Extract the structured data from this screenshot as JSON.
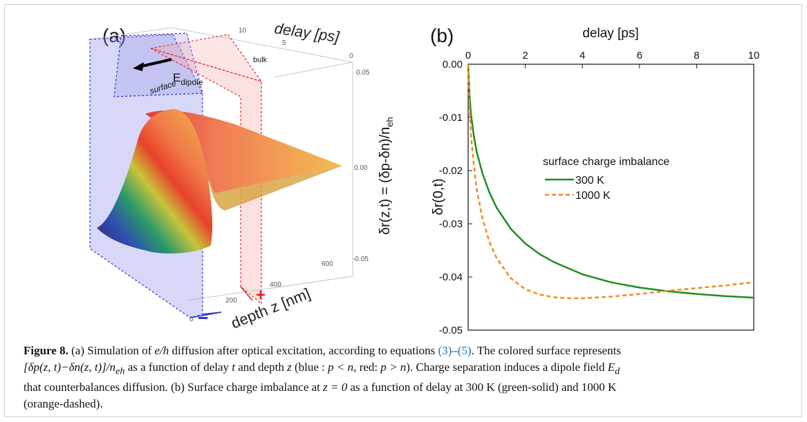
{
  "panel_a": {
    "label": "(a)",
    "delay_axis_label": "delay [ps]",
    "delay_ticks": [
      "10",
      "5",
      "0"
    ],
    "bulk_label": "bulk",
    "surface_label": "surface",
    "dipole_label_main": "E",
    "dipole_label_sub": "dipole",
    "z_axis_label_main": "δr(z,t) = (δp-δn)/n",
    "z_axis_label_sub": "eh",
    "z_ticks": [
      "0.05",
      "0.00",
      "-0.05"
    ],
    "depth_axis_label": "depth z [nm]",
    "depth_ticks": [
      "0",
      "200",
      "400",
      "600"
    ],
    "minus_sign": "−",
    "plus_sign": "+",
    "colors": {
      "blue_region": "#6a6ae6",
      "red_region": "#f28b8b",
      "blue_line": "#2a2ad8",
      "red_line": "#e02020"
    }
  },
  "panel_b": {
    "label": "(b)",
    "legend_title": "surface charge imbalance",
    "legend_300": "300 K",
    "legend_1000": "1000 K"
  },
  "chart_data": {
    "type": "line",
    "title": "",
    "xlabel": "delay [ps]",
    "ylabel": "δr(0,t)",
    "xlim": [
      0,
      10
    ],
    "ylim": [
      -0.05,
      0.0
    ],
    "xticks": [
      "0",
      "2",
      "4",
      "6",
      "8",
      "10"
    ],
    "yticks": [
      "0.00",
      "-0.01",
      "-0.02",
      "-0.03",
      "-0.04",
      "-0.05"
    ],
    "x_axis_position": "top",
    "legend_position": "right",
    "grid": false,
    "series": [
      {
        "name": "300 K",
        "color": "#1e8c1e",
        "style": "solid",
        "x": [
          0,
          0.05,
          0.1,
          0.2,
          0.3,
          0.5,
          0.75,
          1,
          1.5,
          2,
          2.5,
          3,
          4,
          5,
          6,
          7,
          8,
          9,
          10
        ],
        "y": [
          0.0,
          -0.006,
          -0.0095,
          -0.0135,
          -0.0165,
          -0.0205,
          -0.0242,
          -0.027,
          -0.031,
          -0.0337,
          -0.0357,
          -0.0372,
          -0.0395,
          -0.041,
          -0.042,
          -0.0427,
          -0.0432,
          -0.0436,
          -0.0439
        ]
      },
      {
        "name": "1000 K",
        "color": "#f08c1e",
        "style": "dashed",
        "x": [
          0,
          0.05,
          0.1,
          0.2,
          0.3,
          0.5,
          0.75,
          1,
          1.5,
          2,
          2.5,
          3,
          3.5,
          4,
          5,
          6,
          7,
          8,
          9,
          10
        ],
        "y": [
          0.0,
          -0.0085,
          -0.0135,
          -0.019,
          -0.0235,
          -0.029,
          -0.0335,
          -0.0365,
          -0.0403,
          -0.0423,
          -0.0433,
          -0.0438,
          -0.044,
          -0.044,
          -0.0437,
          -0.0432,
          -0.0426,
          -0.0421,
          -0.0416,
          -0.041
        ]
      }
    ]
  },
  "caption": {
    "figure_label": "Figure 8.",
    "line1_part1": " (a) Simulation of ",
    "line1_eh": "e/h",
    "line1_part2": " diffusion after optical excitation, according to equations ",
    "ref1": "(3)",
    "dash": "–",
    "ref2": "(5)",
    "line1_part3": ". The colored surface represents",
    "line2_math": "[δp(z, t)−δn(z, t)]/n",
    "line2_sub": "eh",
    "line2_part1": " as a function of delay ",
    "line2_t": "t",
    "line2_part2": " and depth ",
    "line2_z": "z",
    "line2_part3": " (blue : ",
    "line2_cond1": "p < n",
    "line2_part4": ", red: ",
    "line2_cond2": "p > n",
    "line2_part5": "). Charge separation induces a dipole field ",
    "line2_Ed": "E",
    "line2_Ed_sub": "d",
    "line3": "that counterbalances diffusion. (b) Surface charge imbalance at ",
    "line3_z0": "z = 0",
    "line3_part2": " as a function of delay at 300 K (green-solid) and 1000 K",
    "line4": "(orange-dashed)."
  }
}
